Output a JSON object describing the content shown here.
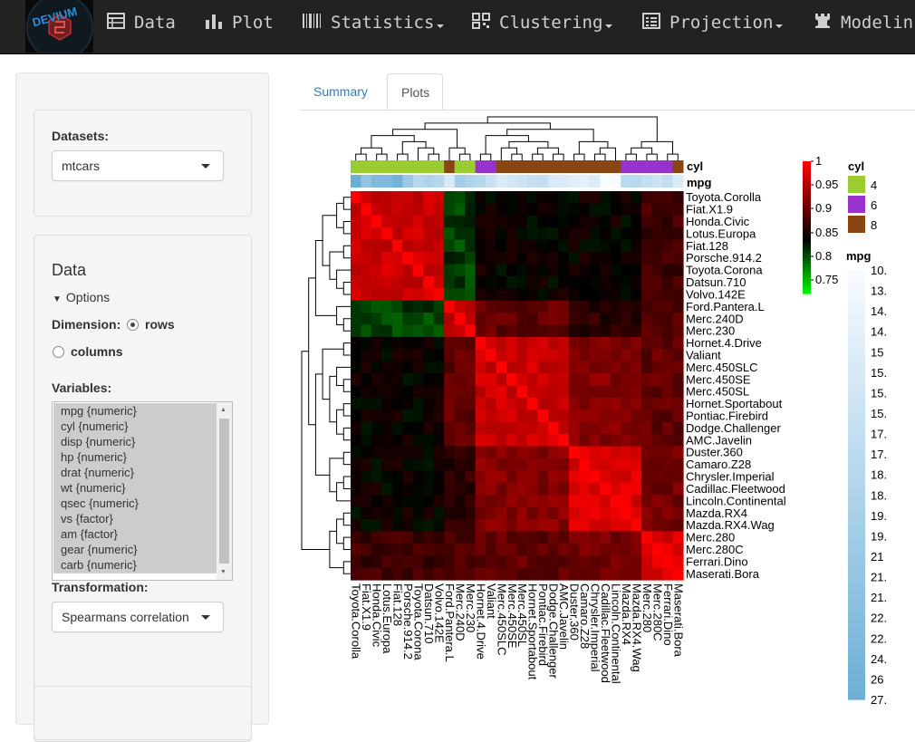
{
  "nav": {
    "logo_text": "DEVIUM",
    "items": [
      {
        "label": "Data",
        "icon": "table-icon",
        "dropdown": false
      },
      {
        "label": "Plot",
        "icon": "bar-chart-icon",
        "dropdown": false
      },
      {
        "label": "Statistics",
        "icon": "barcode-icon",
        "dropdown": true
      },
      {
        "label": "Clustering",
        "icon": "qrcode-icon",
        "dropdown": true
      },
      {
        "label": "Projection",
        "icon": "list-alt-icon",
        "dropdown": true
      },
      {
        "label": "Modelin",
        "icon": "tower-icon",
        "dropdown": false
      }
    ]
  },
  "sidebar": {
    "datasets_label": "Datasets:",
    "dataset_value": "mtcars",
    "section_title": "Data",
    "options_label": "Options",
    "dimension_label": "Dimension:",
    "dimension_options": [
      "rows",
      "columns"
    ],
    "dimension_selected": "rows",
    "variables_label": "Variables:",
    "variables": [
      "mpg {numeric}",
      "cyl {numeric}",
      "disp {numeric}",
      "hp {numeric}",
      "drat {numeric}",
      "wt {numeric}",
      "qsec {numeric}",
      "vs {factor}",
      "am {factor}",
      "gear {numeric}",
      "carb {numeric}"
    ],
    "transformation_label": "Transformation:",
    "transformation_value": "Spearmans correlation"
  },
  "tabs": {
    "items": [
      "Summary",
      "Plots"
    ],
    "active": "Plots"
  },
  "chart_data": {
    "type": "heatmap",
    "rows": [
      "Toyota.Corolla",
      "Fiat.X1.9",
      "Honda.Civic",
      "Lotus.Europa",
      "Fiat.128",
      "Porsche.914.2",
      "Toyota.Corona",
      "Datsun.710",
      "Volvo.142E",
      "Ford.Pantera.L",
      "Merc.240D",
      "Merc.230",
      "Hornet.4.Drive",
      "Valiant",
      "Merc.450SLC",
      "Merc.450SE",
      "Merc.450SL",
      "Hornet.Sportabout",
      "Pontiac.Firebird",
      "Dodge.Challenger",
      "AMC.Javelin",
      "Duster.360",
      "Camaro.Z28",
      "Chrysler.Imperial",
      "Cadillac.Fleetwood",
      "Lincoln.Continental",
      "Mazda.RX4",
      "Mazda.RX4.Wag",
      "Merc.280",
      "Merc.280C",
      "Ferrari.Dino",
      "Maserati.Bora"
    ],
    "columns": [
      "Toyota.Corolla",
      "Fiat.X1.9",
      "Honda.Civic",
      "Lotus.Europa",
      "Fiat.128",
      "Porsche.914.2",
      "Toyota.Corona",
      "Datsun.710",
      "Volvo.142E",
      "Ford.Pantera.L",
      "Merc.240D",
      "Merc.230",
      "Hornet.4.Drive",
      "Valiant",
      "Merc.450SLC",
      "Merc.450SE",
      "Merc.450SL",
      "Hornet.Sportabout",
      "Pontiac.Firebird",
      "Dodge.Challenger",
      "AMC.Javelin",
      "Duster.360",
      "Camaro.Z28",
      "Chrysler.Imperial",
      "Cadillac.Fleetwood",
      "Lincoln.Continental",
      "Mazda.RX4",
      "Mazda.RX4.Wag",
      "Merc.280",
      "Merc.280C",
      "Ferrari.Dino",
      "Maserati.Bora"
    ],
    "groups": [
      0,
      0,
      0,
      0,
      0,
      0,
      0,
      0,
      0,
      1,
      1,
      1,
      2,
      2,
      2,
      2,
      2,
      2,
      2,
      2,
      2,
      3,
      3,
      3,
      3,
      3,
      3,
      3,
      4,
      4,
      4,
      4
    ],
    "annotations": [
      "cyl",
      "mpg"
    ],
    "cyl": [
      4,
      4,
      4,
      4,
      4,
      4,
      4,
      4,
      4,
      8,
      4,
      4,
      6,
      6,
      8,
      8,
      8,
      8,
      8,
      8,
      8,
      8,
      8,
      8,
      8,
      8,
      6,
      6,
      6,
      6,
      6,
      8
    ],
    "mpg": [
      33.9,
      27.3,
      30.4,
      30.4,
      32.4,
      26,
      21.5,
      22.8,
      21.4,
      15.8,
      24.4,
      22.8,
      21.4,
      18.1,
      15.2,
      16.4,
      17.3,
      18.7,
      19.2,
      15.5,
      15.2,
      14.3,
      13.3,
      14.7,
      10.4,
      10.4,
      21,
      21,
      19.2,
      17.8,
      19.7,
      15
    ],
    "color_scale": {
      "values": [
        "1",
        "0.95",
        "0.9",
        "0.85",
        "0.8",
        "0.75"
      ],
      "low": "#00ff00",
      "mid": "#000000",
      "high": "#ff0000"
    },
    "cyl_legend": {
      "title": "cyl",
      "levels": [
        "4",
        "6",
        "8"
      ],
      "colors": [
        "#9acd32",
        "#9932cc",
        "#8b4513"
      ]
    },
    "mpg_legend": {
      "title": "mpg",
      "labels": [
        "10.",
        "13.",
        "14.",
        "14.",
        "15",
        "15.",
        "15.",
        "15.",
        "17.",
        "17.",
        "18.",
        "18.",
        "19.",
        "19.",
        "21",
        "21.",
        "21.",
        "22.",
        "22.",
        "24.",
        "26",
        "27."
      ],
      "low": "#f7fbff",
      "high": "#6baed6"
    }
  }
}
